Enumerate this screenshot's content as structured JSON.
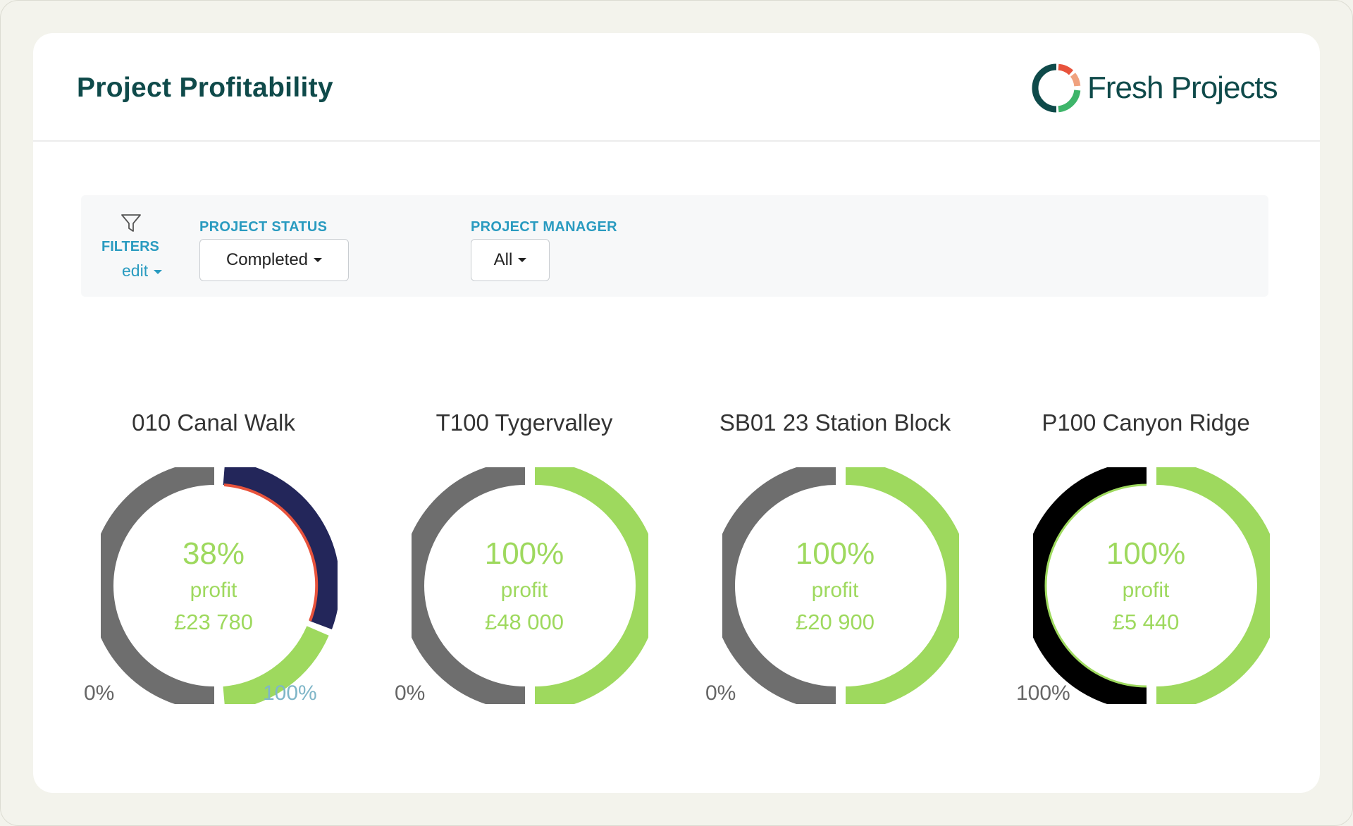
{
  "header": {
    "title": "Project Profitability",
    "brand_name": "Fresh Projects",
    "brand_colors": [
      "#0f4a4a",
      "#e8533c",
      "#f0a27f",
      "#3eb56a"
    ]
  },
  "filters": {
    "icon": "filter-icon",
    "label": "FILTERS",
    "edit_label": "edit",
    "status": {
      "label": "PROJECT STATUS",
      "selected": "Completed"
    },
    "manager": {
      "label": "PROJECT MANAGER",
      "selected": "All"
    }
  },
  "colors": {
    "profit_green": "#9ed95e",
    "track_grey": "#6e6e6e",
    "cost_navy": "#23265a",
    "over_red": "#e8533c",
    "black": "#000000",
    "link_blue": "#2a9bc0"
  },
  "chart_data": [
    {
      "type": "donut",
      "title": "010 Canal Walk",
      "profit_percent": 38,
      "percent_label": "38%",
      "profit_label": "profit",
      "amount_label": "£23 780",
      "axis_min_label": "0%",
      "axis_max_label": "100%"
    },
    {
      "type": "donut",
      "title": "T100 Tygervalley",
      "profit_percent": 100,
      "percent_label": "100%",
      "profit_label": "profit",
      "amount_label": "£48 000",
      "axis_min_label": "0%"
    },
    {
      "type": "donut",
      "title": "SB01 23 Station Block",
      "profit_percent": 100,
      "percent_label": "100%",
      "profit_label": "profit",
      "amount_label": "£20 900",
      "axis_min_label": "0%"
    },
    {
      "type": "donut",
      "title": "P100 Canyon Ridge",
      "profit_percent": 100,
      "percent_label": "100%",
      "profit_label": "profit",
      "amount_label": "£5 440",
      "axis_min_label": "100%"
    }
  ]
}
